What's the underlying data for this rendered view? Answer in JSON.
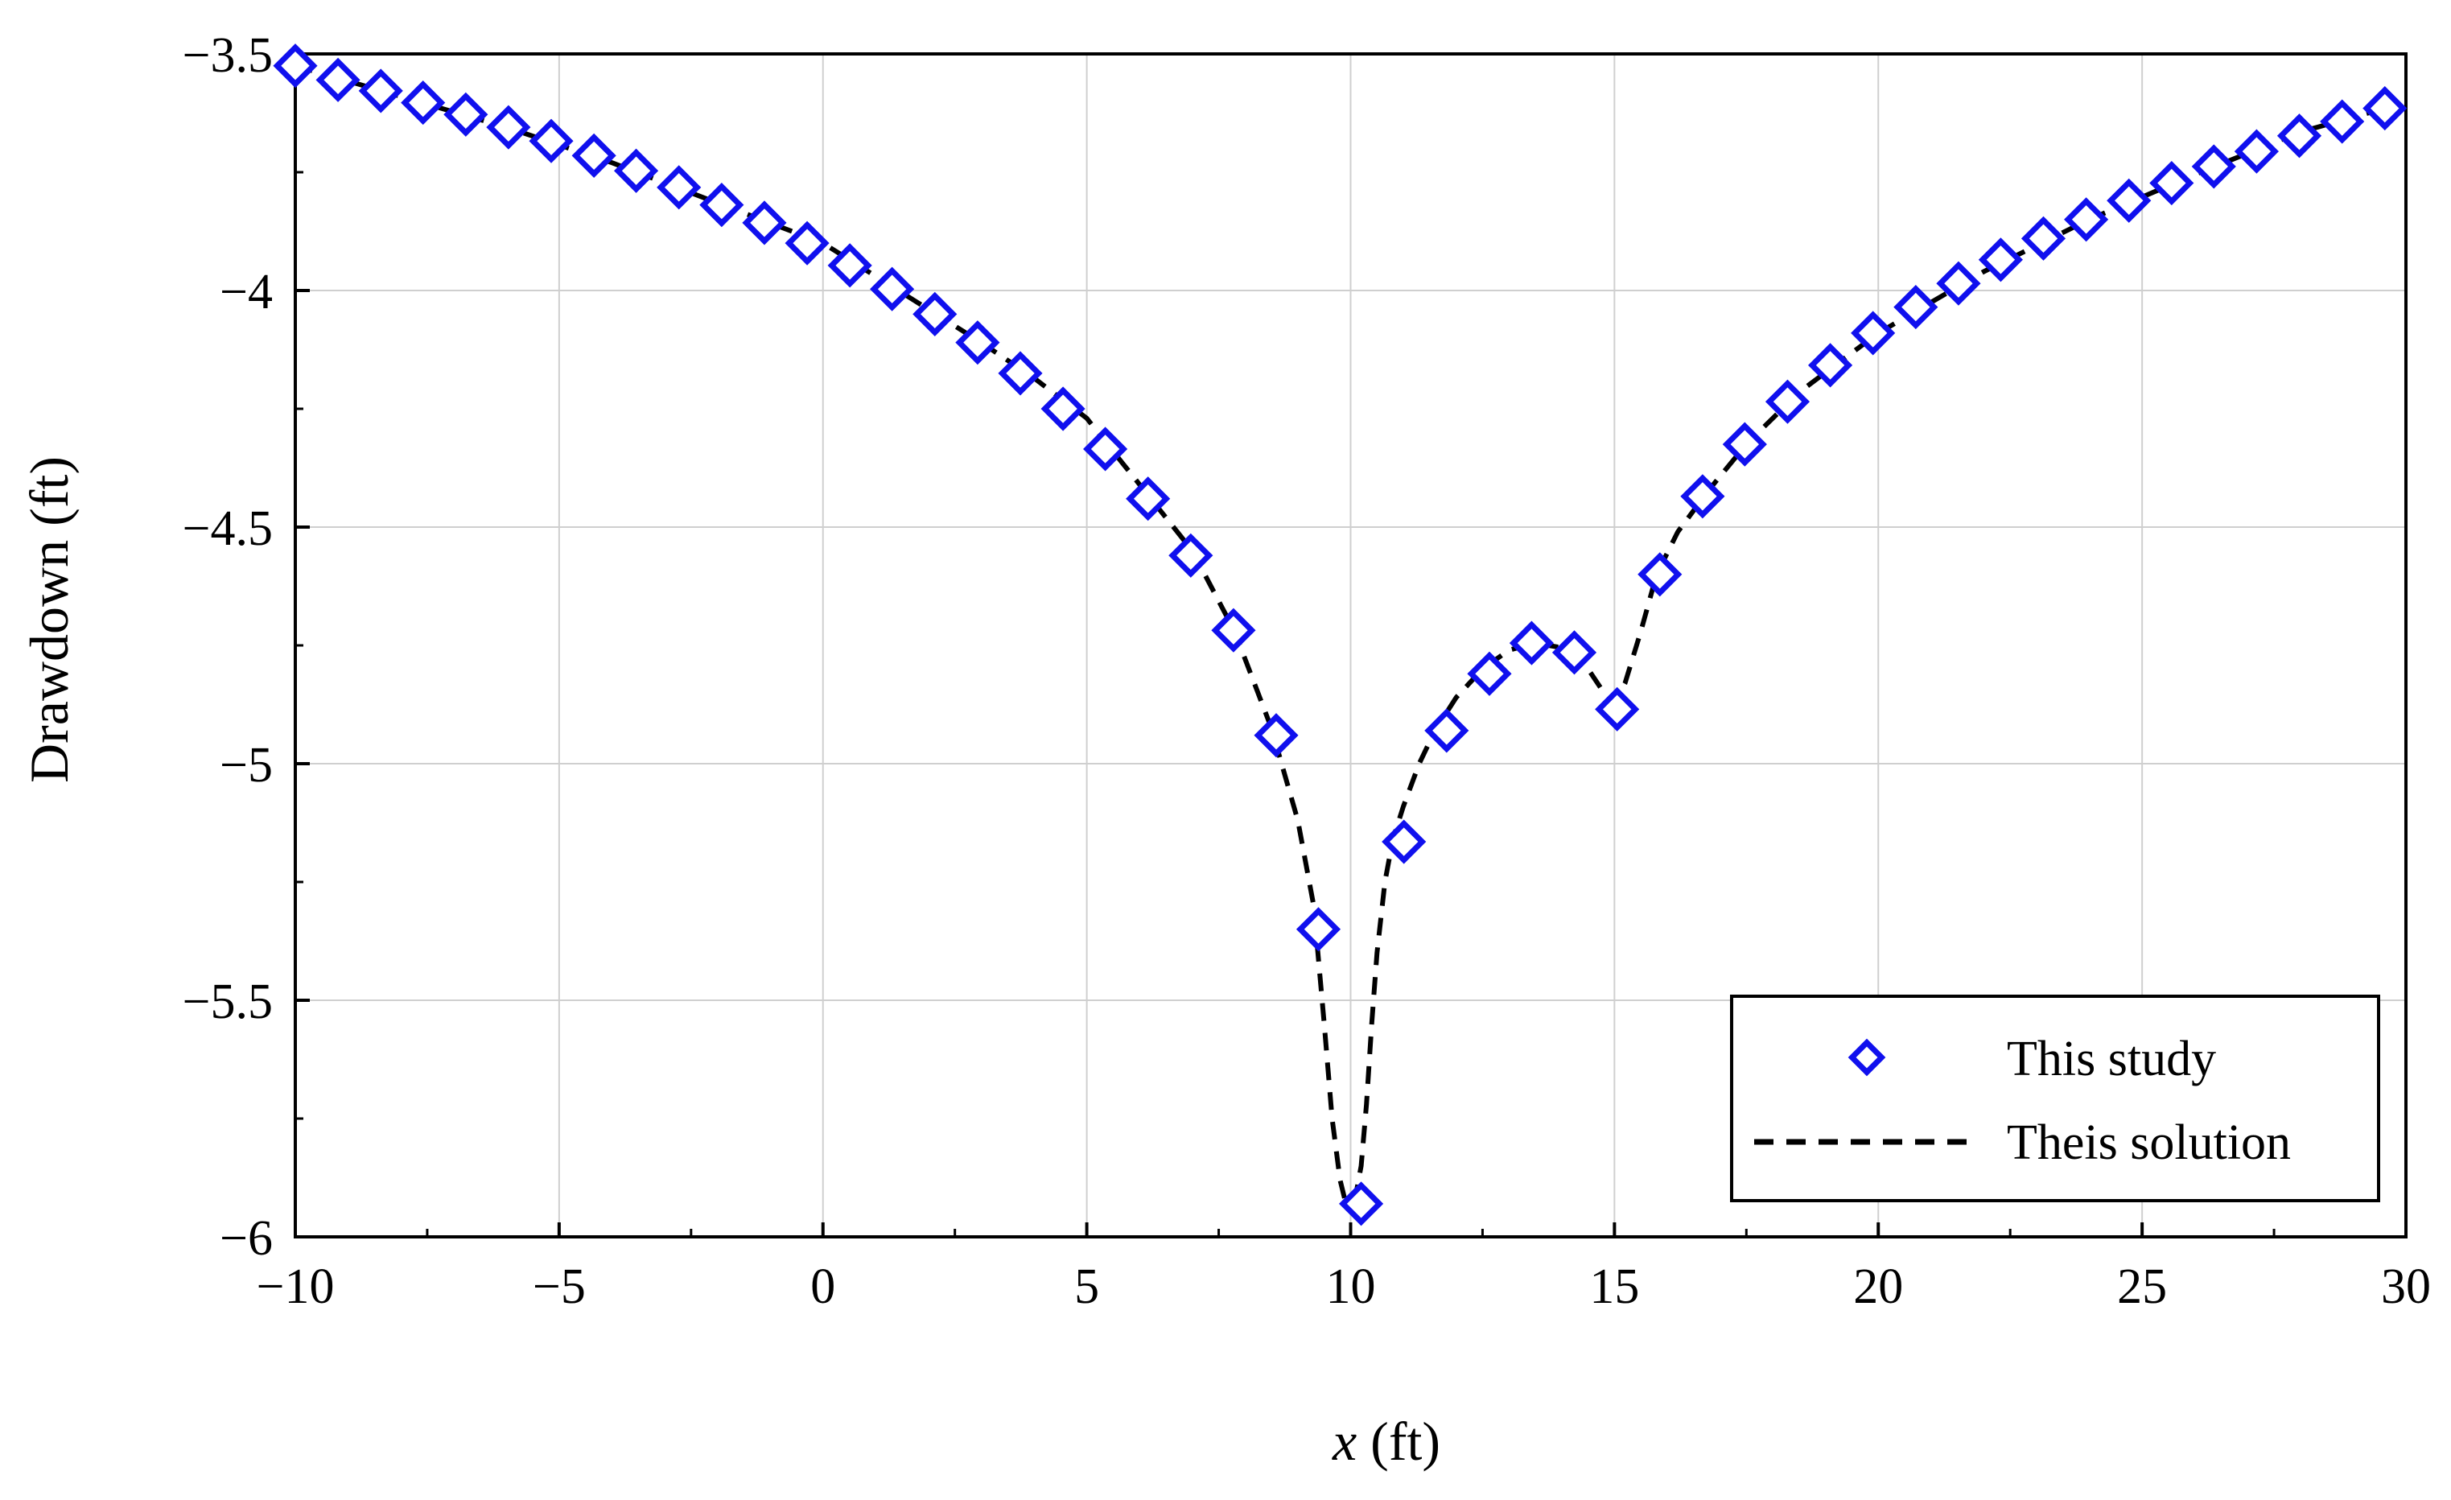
{
  "chart_data": {
    "type": "scatter",
    "xlabel_var": "x",
    "xlabel_unit": " (ft)",
    "ylabel": "Drawdown (ft)",
    "xlim": [
      -10,
      30
    ],
    "ylim": [
      -6,
      -3.5
    ],
    "xticks": [
      -10,
      -5,
      0,
      5,
      10,
      15,
      20,
      25,
      30
    ],
    "xtick_labels": [
      "−10",
      "−5",
      "0",
      "5",
      "10",
      "15",
      "20",
      "25",
      "30"
    ],
    "yticks": [
      -3.5,
      -4,
      -4.5,
      -5,
      -5.5,
      -6
    ],
    "ytick_labels": [
      "−3.5",
      "−4",
      "−4.5",
      "−5",
      "−5.5",
      "−6"
    ],
    "grid": true,
    "legend_position": "bottom-right",
    "series": [
      {
        "name": "This study",
        "kind": "markers",
        "marker": "diamond",
        "color": "#1010ee",
        "x": [
          -10,
          -9.19,
          -8.38,
          -7.58,
          -6.77,
          -5.96,
          -5.15,
          -4.34,
          -3.54,
          -2.73,
          -1.92,
          -1.11,
          -0.3,
          0.51,
          1.31,
          2.12,
          2.93,
          3.74,
          4.55,
          5.35,
          6.16,
          6.97,
          7.78,
          8.59,
          9.39,
          10.2,
          11.01,
          11.82,
          12.63,
          13.43,
          14.24,
          15.05,
          15.86,
          16.67,
          17.47,
          18.28,
          19.09,
          19.9,
          20.71,
          21.52,
          22.32,
          23.13,
          23.94,
          24.75,
          25.56,
          26.36,
          27.17,
          27.98,
          28.79,
          29.6
        ],
        "y": [
          -3.525,
          -3.555,
          -3.578,
          -3.603,
          -3.628,
          -3.655,
          -3.684,
          -3.715,
          -3.747,
          -3.782,
          -3.819,
          -3.857,
          -3.9,
          -3.947,
          -3.997,
          -4.05,
          -4.11,
          -4.175,
          -4.25,
          -4.335,
          -4.44,
          -4.56,
          -4.718,
          -4.94,
          -5.35,
          -5.93,
          -5.165,
          -4.93,
          -4.81,
          -4.745,
          -4.765,
          -4.885,
          -4.6,
          -4.435,
          -4.325,
          -4.235,
          -4.158,
          -4.09,
          -4.035,
          -3.985,
          -3.935,
          -3.89,
          -3.85,
          -3.81,
          -3.773,
          -3.738,
          -3.706,
          -3.673,
          -3.643,
          -3.615
        ]
      },
      {
        "name": "Theis solution",
        "kind": "line",
        "dash": "dashed",
        "color": "#000000",
        "x": [
          -10,
          -8,
          -6,
          -4,
          -2,
          0,
          2,
          3,
          4,
          5,
          6,
          7,
          7.8,
          8.5,
          9,
          9.3,
          9.5,
          9.65,
          9.8,
          9.9,
          10,
          10.1,
          10.2,
          10.3,
          10.4,
          10.5,
          10.65,
          10.8,
          11,
          11.3,
          11.6,
          12,
          12.5,
          13,
          13.5,
          14,
          14.5,
          14.8,
          15,
          15.2,
          15.5,
          15.8,
          16.2,
          16.8,
          17.5,
          18.5,
          20,
          22,
          24,
          26,
          28,
          29.6
        ],
        "y": [
          -3.525,
          -3.59,
          -3.655,
          -3.73,
          -3.815,
          -3.9,
          -4.04,
          -4.11,
          -4.185,
          -4.27,
          -4.41,
          -4.55,
          -4.72,
          -4.925,
          -5.12,
          -5.3,
          -5.55,
          -5.75,
          -5.88,
          -5.925,
          -5.93,
          -5.91,
          -5.85,
          -5.72,
          -5.55,
          -5.4,
          -5.25,
          -5.16,
          -5.09,
          -5.0,
          -4.93,
          -4.86,
          -4.8,
          -4.76,
          -4.745,
          -4.755,
          -4.8,
          -4.85,
          -4.87,
          -4.83,
          -4.72,
          -4.6,
          -4.51,
          -4.42,
          -4.325,
          -4.215,
          -4.09,
          -3.96,
          -3.85,
          -3.755,
          -3.665,
          -3.615
        ]
      }
    ]
  }
}
